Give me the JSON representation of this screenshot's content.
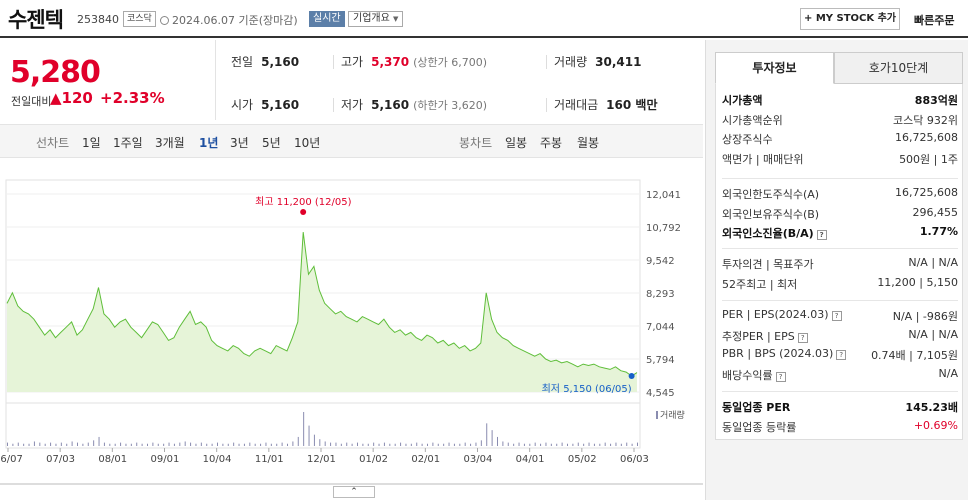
{
  "header": {
    "name": "수젠텍",
    "code": "253840",
    "market": "코스닥",
    "date": "2024.06.07",
    "basis": "기준(장마감)",
    "realtime": "실시간",
    "company_info": "기업개요",
    "mystock": "+ MY STOCK 추가",
    "quick_order": "빠른주문"
  },
  "price": {
    "current": "5,280",
    "change_label": "전일대비",
    "change": "▲120",
    "change_pct": "+2.33%"
  },
  "stats": {
    "prev_label": "전일",
    "prev": "5,160",
    "high_label": "고가",
    "high": "5,370",
    "high_sub": "(상한가 6,700)",
    "volume_label": "거래량",
    "volume": "30,411",
    "open_label": "시가",
    "open": "5,160",
    "low_label": "저가",
    "low": "5,160",
    "low_sub": "(하한가 3,620)",
    "amount_label": "거래대금",
    "amount": "160 백만"
  },
  "period": {
    "line_label": "선차트",
    "periods": [
      "1일",
      "1주일",
      "3개월",
      "1년",
      "3년",
      "5년",
      "10년"
    ],
    "active_index": 3,
    "candle_label": "봉차트",
    "candles": [
      "일봉",
      "주봉",
      "월봉"
    ]
  },
  "chart_data": {
    "type": "area",
    "y_ticks": [
      "12,041",
      "10,792",
      "9,542",
      "8,293",
      "7,044",
      "5,794",
      "4,545"
    ],
    "ylim": [
      4545,
      12041
    ],
    "x_labels": [
      "06/07",
      "07/03",
      "08/01",
      "09/01",
      "10/04",
      "11/01",
      "12/01",
      "01/02",
      "02/01",
      "03/04",
      "04/01",
      "05/02",
      "06/03"
    ],
    "series": [
      {
        "values": [
          7900,
          8300,
          7800,
          7600,
          7500,
          7300,
          7000,
          6700,
          6900,
          6600,
          6800,
          7000,
          7200,
          6700,
          6900,
          7300,
          7700,
          8500,
          7500,
          7300,
          7000,
          7200,
          7300,
          7000,
          6800,
          6600,
          6900,
          7200,
          7100,
          6800,
          6500,
          6600,
          7000,
          7300,
          7600,
          7100,
          7200,
          7000,
          6500,
          6300,
          6200,
          6100,
          6300,
          6200,
          6000,
          5900,
          6100,
          6200,
          6100,
          6000,
          6300,
          6200,
          6100,
          6600,
          7200,
          10600,
          9000,
          9300,
          8400,
          7900,
          7700,
          7500,
          7600,
          7400,
          7300,
          7200,
          7400,
          7300,
          7200,
          7100,
          7300,
          7000,
          6800,
          6900,
          6700,
          6800,
          6600,
          6500,
          6700,
          6600,
          6400,
          6500,
          6300,
          6400,
          6200,
          6300,
          6100,
          6200,
          6400,
          8300,
          7300,
          6800,
          6600,
          6500,
          6300,
          6200,
          6100,
          6000,
          5900,
          6000,
          5800,
          5700,
          5750,
          5650,
          5700,
          5600,
          5500,
          5600,
          5550,
          5600,
          5500,
          5450,
          5400,
          5500,
          5350,
          5300,
          5150,
          5280
        ]
      }
    ],
    "volume_label": "거래량",
    "volume": [
      3,
      2,
      3,
      2,
      2,
      4,
      3,
      2,
      3,
      2,
      3,
      2,
      4,
      3,
      2,
      3,
      5,
      8,
      3,
      2,
      2,
      3,
      2,
      2,
      3,
      2,
      2,
      3,
      2,
      2,
      3,
      2,
      3,
      4,
      3,
      2,
      3,
      2,
      2,
      3,
      2,
      2,
      3,
      2,
      2,
      3,
      2,
      2,
      3,
      2,
      2,
      3,
      2,
      4,
      8,
      30,
      18,
      10,
      6,
      4,
      3,
      3,
      2,
      3,
      2,
      3,
      2,
      2,
      3,
      2,
      3,
      2,
      2,
      3,
      2,
      2,
      3,
      2,
      2,
      3,
      2,
      2,
      3,
      2,
      2,
      3,
      2,
      3,
      5,
      20,
      14,
      8,
      4,
      3,
      2,
      3,
      2,
      2,
      3,
      2,
      3,
      2,
      2,
      3,
      2,
      2,
      3,
      2,
      3,
      2,
      2,
      3,
      2,
      3,
      2,
      3,
      2,
      3
    ],
    "high_annotation": "최고 11,200 (12/05)",
    "low_annotation": "최저 5,150 (06/05)",
    "high_index": 55,
    "low_index": 116,
    "line_color": "#5fbe3a",
    "fill_color": "#e6f4d8"
  },
  "side": {
    "tab_active": "투자정보",
    "tab_other": "호가10단계",
    "rows1": [
      {
        "l": "시가총액",
        "r": "883억원",
        "bold": true
      },
      {
        "l": "시가총액순위",
        "r": "코스닥 932위"
      },
      {
        "l": "상장주식수",
        "r": "16,725,608"
      },
      {
        "l": "액면가 | 매매단위",
        "r": "500원 | 1주"
      }
    ],
    "rows2": [
      {
        "l": "외국인한도주식수(A)",
        "r": "16,725,608"
      },
      {
        "l": "외국인보유주식수(B)",
        "r": "296,455"
      },
      {
        "l": "외국인소진율(B/A)",
        "r": "1.77%",
        "bold": true,
        "q": true
      }
    ],
    "rows3": [
      {
        "l": "투자의견 | 목표주가",
        "r": "N/A | N/A"
      },
      {
        "l": "52주최고 | 최저",
        "r": "11,200 | 5,150"
      }
    ],
    "rows4": [
      {
        "l": "PER | EPS(2024.03)",
        "r": "N/A | -986원",
        "q": true
      },
      {
        "l": "추정PER | EPS",
        "r": "N/A | N/A",
        "q": true
      },
      {
        "l": "PBR | BPS (2024.03)",
        "r": "0.74배 | 7,105원",
        "q": true
      },
      {
        "l": "배당수익률",
        "r": "N/A",
        "q": true
      }
    ],
    "rows5": [
      {
        "l": "동일업종 PER",
        "r": "145.23배",
        "bold": true
      },
      {
        "l": "동일업종 등락률",
        "r": "+0.69%",
        "red": true
      }
    ]
  },
  "expand_label": "⌃"
}
